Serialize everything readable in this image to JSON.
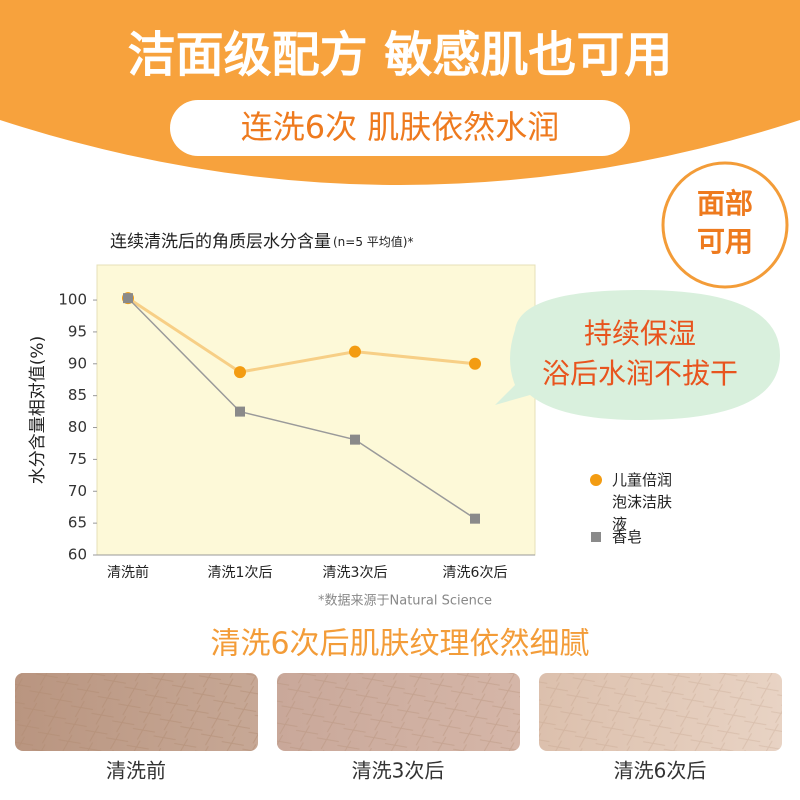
{
  "header": {
    "title": "洁面级配方 敏感肌也可用",
    "subtitle": "连洗6次 肌肤依然水润"
  },
  "badge": {
    "lines": [
      "面部",
      "可用"
    ]
  },
  "callout": {
    "lines": [
      "持续保湿",
      "浴后水润不拔干"
    ]
  },
  "chart_data": {
    "type": "line",
    "title": "连续清洗后的角质层水分含量",
    "title_note": "(n=5 平均值)*",
    "y_label": "水分含量相对值(%)",
    "source": "*数据来源于Natural Science",
    "categories": [
      "清洗前",
      "清洗1次后",
      "清洗3次后",
      "清洗6次后"
    ],
    "series": [
      {
        "name": "儿童倍润泡沫洁肤液",
        "color": "#f39c12",
        "line_color": "#f7cf86",
        "marker": "circle",
        "values": [
          100.3,
          88.7,
          91.9,
          90.0
        ]
      },
      {
        "name": "香皂",
        "color": "#8a8a8a",
        "line_color": "#9a9a9a",
        "marker": "square",
        "values": [
          100.3,
          82.5,
          78.1,
          65.7
        ]
      }
    ],
    "ylim": [
      60,
      105.5
    ],
    "yticks": [
      60,
      65,
      70,
      75,
      80,
      85,
      90,
      95,
      100
    ],
    "background": "#fdf9d8"
  },
  "section": {
    "title": "清洗6次后肌肤纹理依然细腻",
    "captions": [
      "清洗前",
      "清洗3次后",
      "清洗6次后"
    ]
  }
}
